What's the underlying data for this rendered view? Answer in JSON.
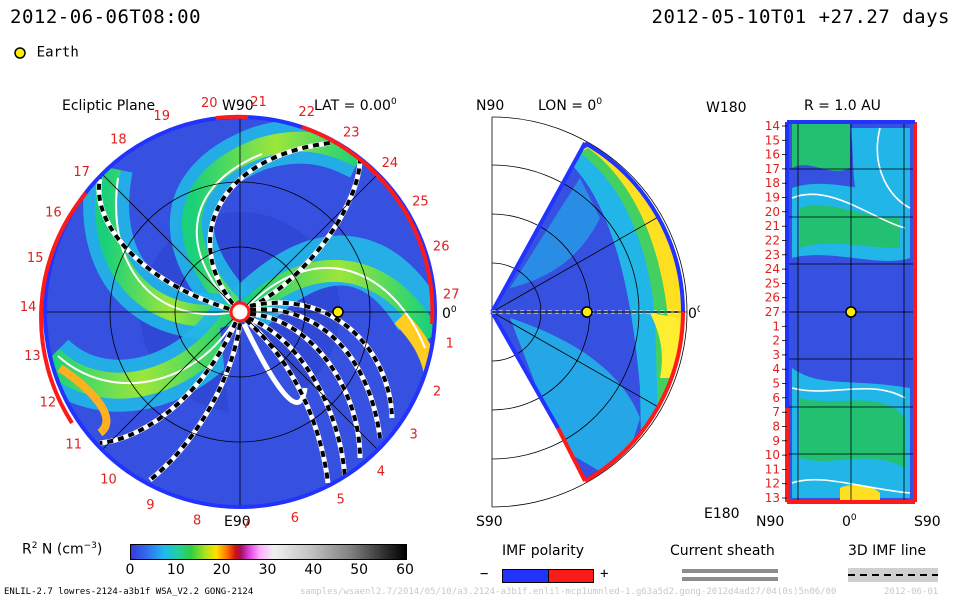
{
  "header": {
    "date_left": "2012-06-06T08:00",
    "date_right": "2012-05-10T01 +27.27 days"
  },
  "legend": {
    "earth_label": "Earth"
  },
  "ecliptic": {
    "title": "Ecliptic Plane",
    "top_label": "W90",
    "lat_label": "LAT = 0.00",
    "lat_unit_sup": "0",
    "bottom_label": "E90",
    "right_label": "0",
    "right_sup": "0",
    "rotations": [
      "1",
      "2",
      "3",
      "4",
      "5",
      "6",
      "7",
      "8",
      "9",
      "10",
      "11",
      "12",
      "13",
      "14",
      "15",
      "16",
      "17",
      "18",
      "19",
      "20",
      "21",
      "22",
      "23",
      "24",
      "25",
      "26",
      "27"
    ]
  },
  "meridional": {
    "top_left": "N90",
    "lon_label": "LON = 0",
    "lon_sup": "0",
    "bottom_left": "S90",
    "right_label": "0",
    "right_sup": "0"
  },
  "radial": {
    "top_left": "W180",
    "title": "R = 1.0 AU",
    "bottom_left": "E180",
    "x_labels": [
      "N90",
      "0",
      "S90"
    ],
    "x_sup": "0",
    "y_labels": [
      "14",
      "15",
      "16",
      "17",
      "18",
      "19",
      "20",
      "21",
      "22",
      "23",
      "24",
      "25",
      "26",
      "27",
      "1",
      "2",
      "3",
      "4",
      "5",
      "6",
      "7",
      "8",
      "9",
      "10",
      "11",
      "12",
      "13"
    ]
  },
  "colorbar": {
    "label_prefix": "R",
    "label_sup": "2",
    "label_suffix": " N (cm",
    "label_exp": "−3",
    "label_end": ")",
    "ticks": [
      "0",
      "10",
      "20",
      "30",
      "40",
      "50",
      "60"
    ]
  },
  "imf_polarity": {
    "title": "IMF polarity",
    "minus": "−",
    "plus": "+"
  },
  "current_sheath": {
    "title": "Current sheath"
  },
  "imf_line": {
    "title": "3D IMF line"
  },
  "footer": {
    "model_info": "ENLIL-2.7 lowres-2124-a3b1f WSA_V2.2 GONG-2124",
    "ghost_path": "samples/wsaenl2.7/2014/05/10/a3.2124-a3b1f.enlil-mcp1umnled-1.g63a5d2.gong-2012d4ad27/04(0s)5n06/00",
    "ghost_date": "2012-06-01"
  },
  "colors": {
    "bg_blue": "#3246d8",
    "sector_plus": "#ff1a1a",
    "sector_minus": "#2233ff",
    "earth": "#ffee00"
  }
}
